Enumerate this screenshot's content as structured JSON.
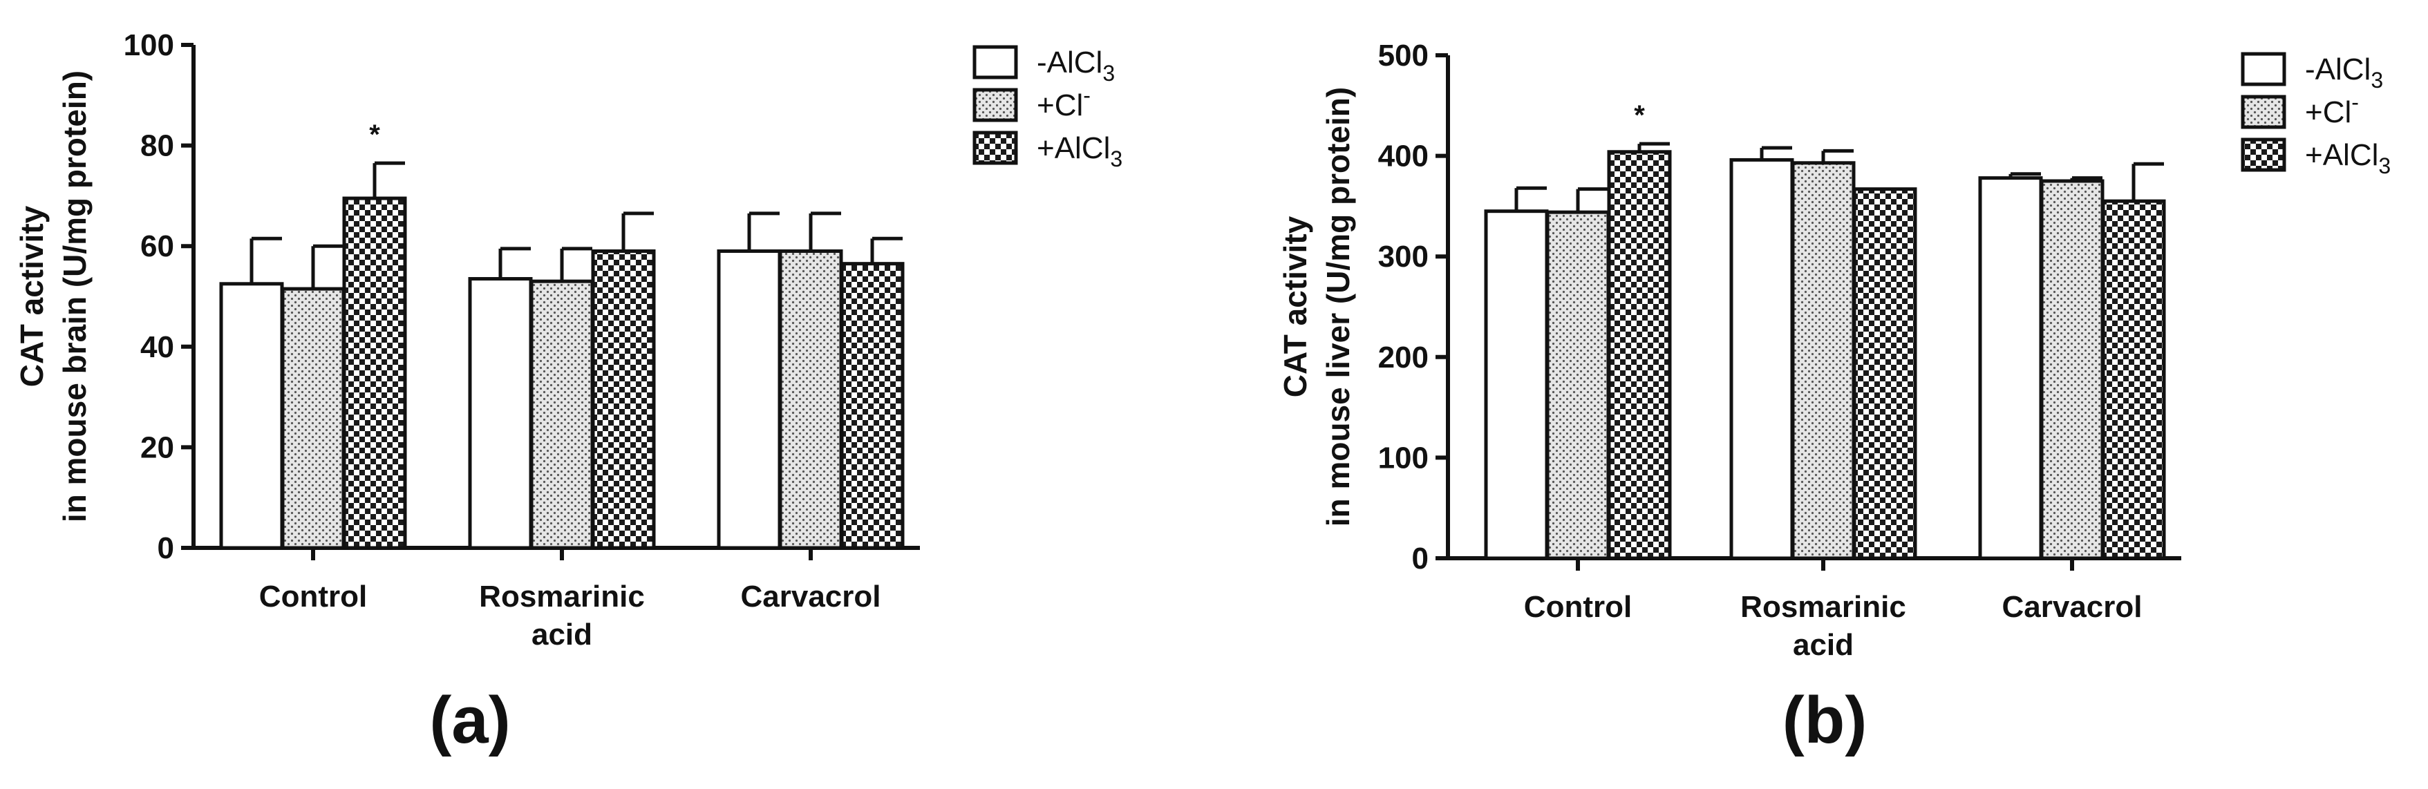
{
  "chart_data": [
    {
      "type": "bar",
      "panel_label": "(a)",
      "ylabel_lines": [
        "CAT activity",
        "in mouse brain (U/mg protein)"
      ],
      "ylim": [
        0,
        100
      ],
      "yticks": [
        0,
        20,
        40,
        60,
        80,
        100
      ],
      "categories": [
        [
          "Control"
        ],
        [
          "Rosmarinic",
          "acid"
        ],
        [
          "Carvacrol"
        ]
      ],
      "legend_placement": "top-right",
      "series": [
        {
          "name": "-AlCl3",
          "label_parts": [
            "-AlCl",
            "3",
            ""
          ],
          "fill": "white",
          "values": [
            52.5,
            53.5,
            59
          ],
          "errors": [
            9,
            6,
            7.5
          ]
        },
        {
          "name": "+Cl-",
          "label_parts": [
            "+Cl",
            "",
            "-"
          ],
          "fill": "dotted",
          "values": [
            51.5,
            53,
            59
          ],
          "errors": [
            8.5,
            6.5,
            7.5
          ]
        },
        {
          "name": "+AlCl3",
          "label_parts": [
            "+AlCl",
            "3",
            ""
          ],
          "fill": "checker",
          "values": [
            69.5,
            59,
            56.5
          ],
          "errors": [
            7,
            7.5,
            5
          ]
        }
      ],
      "annotations": [
        {
          "text": "*",
          "category": 0,
          "series": 2
        }
      ]
    },
    {
      "type": "bar",
      "panel_label": "(b)",
      "ylabel_lines": [
        "CAT activity",
        "in mouse liver (U/mg protein)"
      ],
      "ylim": [
        0,
        500
      ],
      "yticks": [
        0,
        100,
        200,
        300,
        400,
        500
      ],
      "categories": [
        [
          "Control"
        ],
        [
          "Rosmarinic",
          "acid"
        ],
        [
          "Carvacrol"
        ]
      ],
      "legend_placement": "top-right",
      "series": [
        {
          "name": "-AlCl3",
          "label_parts": [
            "-AlCl",
            "3",
            ""
          ],
          "fill": "white",
          "values": [
            345,
            396,
            378
          ],
          "errors": [
            23,
            12,
            4
          ]
        },
        {
          "name": "+Cl-",
          "label_parts": [
            "+Cl",
            "",
            "-"
          ],
          "fill": "dotted",
          "values": [
            344,
            393,
            375
          ],
          "errors": [
            23,
            12,
            3
          ]
        },
        {
          "name": "+AlCl3",
          "label_parts": [
            "+AlCl",
            "3",
            ""
          ],
          "fill": "checker",
          "values": [
            404,
            367,
            355
          ],
          "errors": [
            8,
            0,
            37
          ]
        }
      ],
      "annotations": [
        {
          "text": "*",
          "category": 0,
          "series": 2
        }
      ]
    }
  ]
}
